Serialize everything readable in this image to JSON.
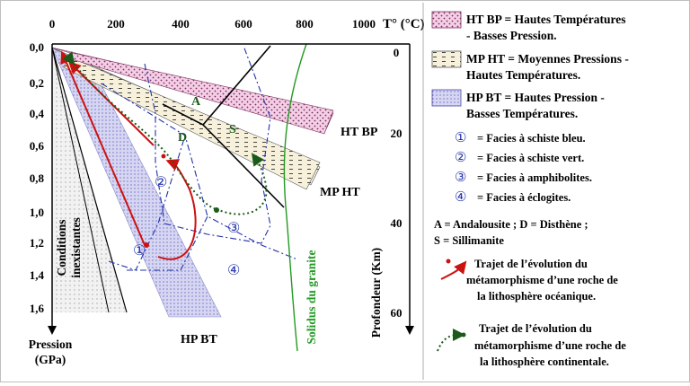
{
  "axes": {
    "temperature_label": "T° (°C)",
    "temperature_ticks": [
      "0",
      "200",
      "400",
      "600",
      "800",
      "1000"
    ],
    "pressure_ticks": [
      "0,0",
      "0,2",
      "0,4",
      "0,6",
      "0,8",
      "1,0",
      "1,2",
      "1,4",
      "1,6"
    ],
    "pressure_label_line1": "Pression",
    "pressure_label_line2": "(GPa)",
    "depth_label": "Profondeur (Km)",
    "depth_ticks": [
      "0",
      "20",
      "40",
      "60"
    ]
  },
  "zones": {
    "ht_bp": "HT BP",
    "mp_ht": "MP HT",
    "hp_bt": "HP BT"
  },
  "labels": {
    "conditions_line1": "Conditions",
    "conditions_line2": "inexistantes",
    "solidus": "Solidus du granite",
    "andalousite": "A",
    "disthene": "D",
    "sillimanite": "S",
    "facies": [
      "①",
      "②",
      "③",
      "④"
    ]
  },
  "legend": {
    "ht_bp_line1": "HT BP = Hautes Températures",
    "ht_bp_line2": "- Basses Pression.",
    "mp_ht_line1": "MP HT = Moyennes Pressions -",
    "mp_ht_line2": "Hautes Températures.",
    "hp_bt_line1": "HP BT = Hautes Pression -",
    "hp_bt_line2": "Basses Températures.",
    "facies_items": [
      {
        "num": "①",
        "text": "= Facies à schiste bleu."
      },
      {
        "num": "②",
        "text": "= Facies à schiste vert."
      },
      {
        "num": "③",
        "text": "= Facies à amphibolites."
      },
      {
        "num": "④",
        "text": "= Facies à éclogites."
      }
    ],
    "minerals_line1": "A = Andalousite ; D = Disthène ;",
    "minerals_line2": "S = Sillimanite",
    "oceanic_line1": "Trajet de l’évolution du",
    "oceanic_line2": "métamorphisme d’une roche de",
    "oceanic_line3": "la lithosphère océanique.",
    "continental_line1": "Trajet de l’évolution du",
    "continental_line2": "métamorphisme d’une roche de",
    "continental_line3": "la lithosphère continentale."
  },
  "colors": {
    "oceanic_path": "#cc1111",
    "continental_path": "#1a5a1a",
    "solidus": "#229922",
    "facies_border": "#2233aa",
    "ht_bp_fill": "#e9b3d6",
    "mp_ht_fill": "#f3ecd0",
    "hp_bt_fill": "#c8c8ee"
  }
}
